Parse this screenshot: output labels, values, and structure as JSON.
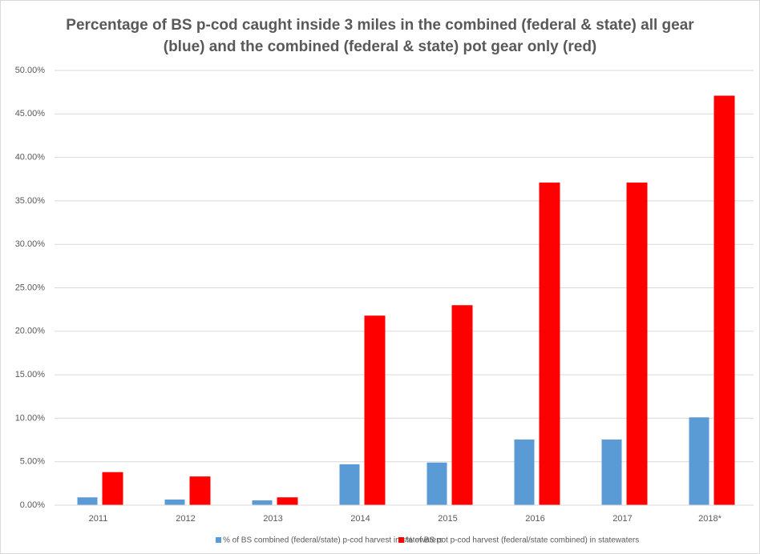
{
  "chart_data": {
    "type": "bar",
    "title": "Percentage of BS p-cod caught inside 3 miles in the combined (federal & state) all gear (blue) and the combined (federal & state) pot gear only (red)",
    "categories": [
      "2011",
      "2012",
      "2013",
      "2014",
      "2015",
      "2016",
      "2017",
      "2018*"
    ],
    "series": [
      {
        "name": "% of BS combined (federal/state) p-cod harvest in statewaters",
        "color": "#5b9bd5",
        "values": [
          0.9,
          0.65,
          0.55,
          4.7,
          4.9,
          7.55,
          7.55,
          10.1
        ]
      },
      {
        "name": "% of BS pot p-cod harvest (federal/state combined) in statewaters",
        "color": "#ff0000",
        "values": [
          3.8,
          3.3,
          0.9,
          21.8,
          23.0,
          37.1,
          37.1,
          47.1
        ]
      }
    ],
    "ylim": [
      0,
      50
    ],
    "yticks": [
      {
        "value": 0,
        "label": "0.00%"
      },
      {
        "value": 5,
        "label": "5.00%"
      },
      {
        "value": 10,
        "label": "10.00%"
      },
      {
        "value": 15,
        "label": "15.00%"
      },
      {
        "value": 20,
        "label": "20.00%"
      },
      {
        "value": 25,
        "label": "25.00%"
      },
      {
        "value": 30,
        "label": "30.00%"
      },
      {
        "value": 35,
        "label": "35.00%"
      },
      {
        "value": 40,
        "label": "40.00%"
      },
      {
        "value": 45,
        "label": "45.00%"
      },
      {
        "value": 50,
        "label": "50.00%"
      }
    ],
    "grid": true,
    "legend": "bottom"
  }
}
